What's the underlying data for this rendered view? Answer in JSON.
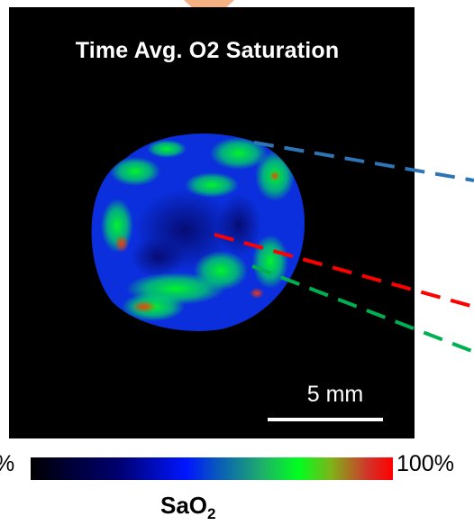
{
  "image_title": "Time Avg. O2 Saturation",
  "scale_bar": {
    "label": "5 mm"
  },
  "colorbar": {
    "min_label": "%",
    "max_label": "100%",
    "label_main": "SaO",
    "label_sub": "2"
  },
  "colors": {
    "arrow": "#f4b183",
    "panel_bg": "#000000",
    "line_blue": "#2e75b6",
    "line_red": "#ff0000",
    "line_green": "#00b050"
  }
}
